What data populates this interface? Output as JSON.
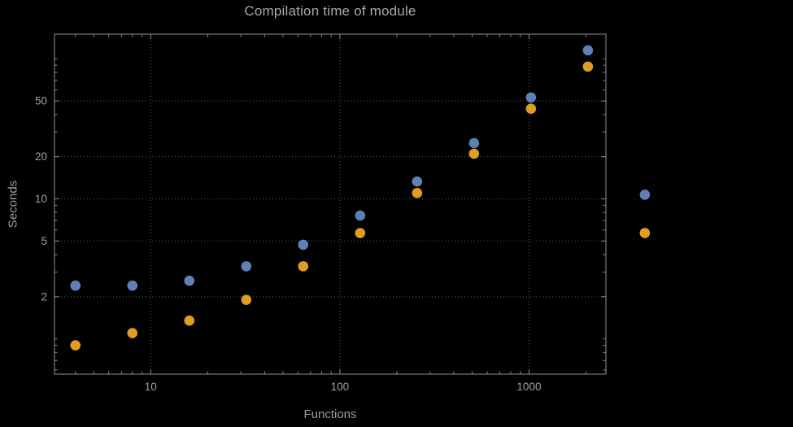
{
  "chart_data": {
    "type": "scatter",
    "title": "Compilation time of module",
    "xlabel": "Functions",
    "ylabel": "Seconds",
    "x_scale": "log",
    "y_scale": "log",
    "xlim": [
      3.1,
      2550
    ],
    "ylim": [
      0.56,
      150
    ],
    "x_ticks": [
      10,
      100,
      1000
    ],
    "y_ticks": [
      2,
      5,
      10,
      20,
      50
    ],
    "grid": true,
    "grid_style": "dotted",
    "legend": "none",
    "x": [
      4,
      8,
      16,
      32,
      64,
      128,
      256,
      512,
      1024,
      2048,
      4096
    ],
    "series": [
      {
        "name": "series-blue",
        "color": "#5E81B5",
        "values": [
          2.4,
          2.4,
          2.6,
          3.3,
          4.7,
          7.6,
          13.3,
          25,
          53,
          115,
          10.7
        ]
      },
      {
        "name": "series-orange",
        "color": "#E19C24",
        "values": [
          0.9,
          1.1,
          1.35,
          1.9,
          3.3,
          5.7,
          11,
          21,
          44,
          88,
          5.7
        ]
      }
    ],
    "colors": {
      "background": "#000000",
      "frame": "#8f8f8f",
      "grid": "#606060",
      "text": "#a2a2a2"
    },
    "marker": {
      "shape": "circle",
      "radius": 6.3
    }
  }
}
